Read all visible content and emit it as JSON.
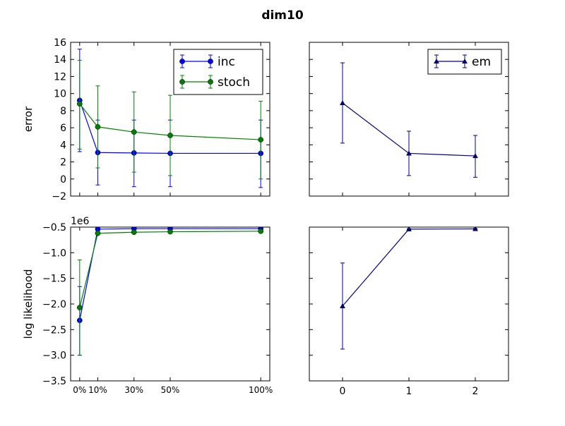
{
  "figure": {
    "title": "dim10"
  },
  "colors": {
    "inc": "#0000ff",
    "stoch": "#008000",
    "em": "#00008b",
    "axes": "#000000",
    "background": "#ffffff"
  },
  "chart_data": [
    {
      "id": "error-sweep",
      "type": "line",
      "subtype": "errorbar",
      "title": "",
      "xlabel": "",
      "ylabel": "error",
      "x": [
        0,
        10,
        30,
        50,
        100
      ],
      "xtick_labels": [
        "0%",
        "10%",
        "30%",
        "50%",
        "100%"
      ],
      "xlim": [
        -5,
        105
      ],
      "ylim": [
        -2,
        16
      ],
      "yticks": [
        -2,
        0,
        2,
        4,
        6,
        8,
        10,
        12,
        14,
        16
      ],
      "ytick_labels": [
        "−2",
        "0",
        "2",
        "4",
        "6",
        "8",
        "10",
        "12",
        "14",
        "16"
      ],
      "show_xtick_labels": false,
      "legend": {
        "position": "top-right",
        "entries": [
          "inc",
          "stoch"
        ]
      },
      "series": [
        {
          "name": "inc",
          "marker": "circle",
          "values": [
            9.2,
            3.1,
            3.05,
            3.0,
            3.0
          ],
          "yerr_low": [
            3.2,
            -0.7,
            -0.9,
            -0.9,
            -1.0
          ],
          "yerr_high": [
            15.2,
            6.9,
            6.9,
            6.9,
            6.9
          ]
        },
        {
          "name": "stoch",
          "marker": "circle",
          "values": [
            8.8,
            6.1,
            5.5,
            5.1,
            4.6
          ],
          "yerr_low": [
            3.5,
            1.3,
            0.8,
            0.4,
            0.0
          ],
          "yerr_high": [
            13.9,
            10.9,
            10.2,
            9.8,
            9.1
          ]
        }
      ]
    },
    {
      "id": "error-em",
      "type": "line",
      "subtype": "errorbar",
      "title": "",
      "xlabel": "",
      "ylabel": "",
      "x": [
        0,
        1,
        2
      ],
      "xtick_labels": [
        "0",
        "1",
        "2"
      ],
      "xlim": [
        -0.5,
        2.5
      ],
      "ylim": [
        -2,
        16
      ],
      "yticks": [
        -2,
        0,
        2,
        4,
        6,
        8,
        10,
        12,
        14,
        16
      ],
      "show_xtick_labels": false,
      "show_ytick_labels": false,
      "legend": {
        "position": "top-right",
        "entries": [
          "em"
        ]
      },
      "series": [
        {
          "name": "em",
          "marker": "triangle",
          "values": [
            8.9,
            3.0,
            2.7
          ],
          "yerr_low": [
            4.2,
            0.4,
            0.2
          ],
          "yerr_high": [
            13.6,
            5.6,
            5.1
          ]
        }
      ]
    },
    {
      "id": "loglik-sweep",
      "type": "line",
      "subtype": "errorbar",
      "title": "",
      "xlabel": "",
      "ylabel": "log likelihood",
      "scale_label": "1e6",
      "x": [
        0,
        10,
        30,
        50,
        100
      ],
      "xtick_labels": [
        "0%",
        "10%",
        "30%",
        "50%",
        "100%"
      ],
      "xlim": [
        -5,
        105
      ],
      "ylim": [
        -3.5,
        -0.5
      ],
      "yticks": [
        -3.5,
        -3.0,
        -2.5,
        -2.0,
        -1.5,
        -1.0,
        -0.5
      ],
      "ytick_labels": [
        "−3.5",
        "−3.0",
        "−2.5",
        "−2.0",
        "−1.5",
        "−1.0",
        "−0.5"
      ],
      "series": [
        {
          "name": "inc",
          "marker": "circle",
          "values": [
            -2.32,
            -0.54,
            -0.53,
            -0.53,
            -0.53
          ],
          "yerr_low": [
            -3.0,
            -0.56,
            -0.55,
            -0.55,
            -0.55
          ],
          "yerr_high": [
            -1.66,
            -0.52,
            -0.51,
            -0.51,
            -0.51
          ]
        },
        {
          "name": "stoch",
          "marker": "circle",
          "values": [
            -2.07,
            -0.62,
            -0.6,
            -0.59,
            -0.58
          ],
          "yerr_low": [
            -3.0,
            -0.65,
            -0.62,
            -0.61,
            -0.6
          ],
          "yerr_high": [
            -1.14,
            -0.59,
            -0.58,
            -0.57,
            -0.56
          ]
        }
      ]
    },
    {
      "id": "loglik-em",
      "type": "line",
      "subtype": "errorbar",
      "title": "",
      "xlabel": "",
      "ylabel": "",
      "x": [
        0,
        1,
        2
      ],
      "xtick_labels": [
        "0",
        "1",
        "2"
      ],
      "xlim": [
        -0.5,
        2.5
      ],
      "ylim": [
        -3.5,
        -0.5
      ],
      "yticks": [
        -3.5,
        -3.0,
        -2.5,
        -2.0,
        -1.5,
        -1.0,
        -0.5
      ],
      "show_ytick_labels": false,
      "series": [
        {
          "name": "em",
          "marker": "triangle",
          "values": [
            -2.04,
            -0.54,
            -0.535
          ],
          "yerr_low": [
            -2.88,
            -0.55,
            -0.545
          ],
          "yerr_high": [
            -1.2,
            -0.53,
            -0.525
          ]
        }
      ]
    }
  ]
}
